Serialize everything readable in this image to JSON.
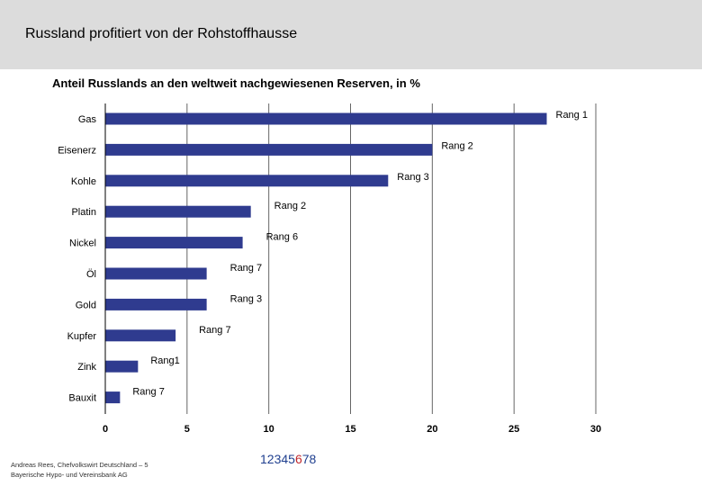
{
  "header": {
    "title": "Russland profitiert von der Rohstoffhausse"
  },
  "chart_data": {
    "type": "bar",
    "orientation": "horizontal",
    "title": "Anteil Russlands an den weltweit nachgewiesenen Reserven, in %",
    "categories": [
      "Gas",
      "Eisenerz",
      "Kohle",
      "Platin",
      "Nickel",
      "Öl",
      "Gold",
      "Kupfer",
      "Zink",
      "Bauxit"
    ],
    "values": [
      27,
      20,
      17.3,
      8.9,
      8.4,
      6.2,
      6.2,
      4.3,
      2,
      0.9
    ],
    "annotations": [
      "Rang 1",
      "Rang 2",
      "Rang 3",
      "Rang 2",
      "Rang 6",
      "Rang 7",
      "Rang 3",
      "Rang 7",
      "Rang1",
      "Rang 7"
    ],
    "xlim": [
      0,
      30
    ],
    "xticks": [
      0,
      5,
      10,
      15,
      20,
      25,
      30
    ],
    "grid": true,
    "bar_color": "#2f3b8f",
    "grid_color": "#666666"
  },
  "footer": {
    "line1": "Andreas Rees, Chefvolkswirt Deutschland – 5",
    "line2": "Bayerische Hypo- und Vereinsbank AG"
  },
  "pager": {
    "before": "12345",
    "current": "6",
    "after": "78"
  }
}
